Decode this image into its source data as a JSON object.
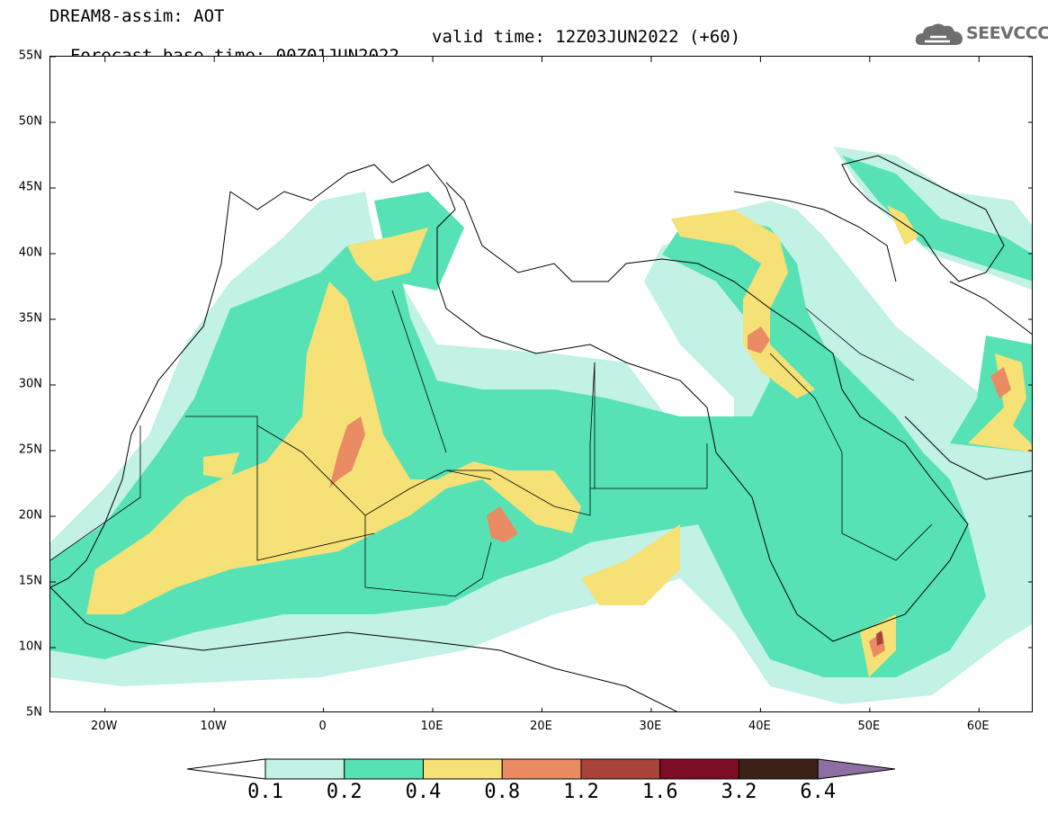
{
  "title": {
    "line1": "DREAM8-assim: AOT",
    "base": "Forecast base time: 00Z01JUN2022",
    "valid": "valid time: 12Z03JUN2022 (+60)"
  },
  "logo": {
    "text": "SEEVCCC",
    "icon": "cloud-icon"
  },
  "map": {
    "projection": "cylindrical equidistant",
    "lon_range": [
      -25,
      65
    ],
    "lat_range": [
      5,
      55
    ],
    "lat_ticks": [
      {
        "v": 55,
        "label": "55N"
      },
      {
        "v": 50,
        "label": "50N"
      },
      {
        "v": 45,
        "label": "45N"
      },
      {
        "v": 40,
        "label": "40N"
      },
      {
        "v": 35,
        "label": "35N"
      },
      {
        "v": 30,
        "label": "30N"
      },
      {
        "v": 25,
        "label": "25N"
      },
      {
        "v": 20,
        "label": "20N"
      },
      {
        "v": 15,
        "label": "15N"
      },
      {
        "v": 10,
        "label": "10N"
      },
      {
        "v": 5,
        "label": "5N"
      }
    ],
    "lon_ticks": [
      {
        "v": -20,
        "label": "20W"
      },
      {
        "v": -10,
        "label": "10W"
      },
      {
        "v": 0,
        "label": "0"
      },
      {
        "v": 10,
        "label": "10E"
      },
      {
        "v": 20,
        "label": "20E"
      },
      {
        "v": 30,
        "label": "30E"
      },
      {
        "v": 40,
        "label": "40E"
      },
      {
        "v": 50,
        "label": "50E"
      },
      {
        "v": 60,
        "label": "60E"
      }
    ]
  },
  "colorbar": {
    "levels": [
      "0.1",
      "0.2",
      "0.4",
      "0.8",
      "1.2",
      "1.6",
      "3.2",
      "6.4"
    ],
    "colors": [
      "#ffffff",
      "#c2f1e5",
      "#57e2b5",
      "#f5e176",
      "#ea8b64",
      "#a8433a",
      "#7c0c24",
      "#3b2218",
      "#8d6fa3"
    ]
  }
}
